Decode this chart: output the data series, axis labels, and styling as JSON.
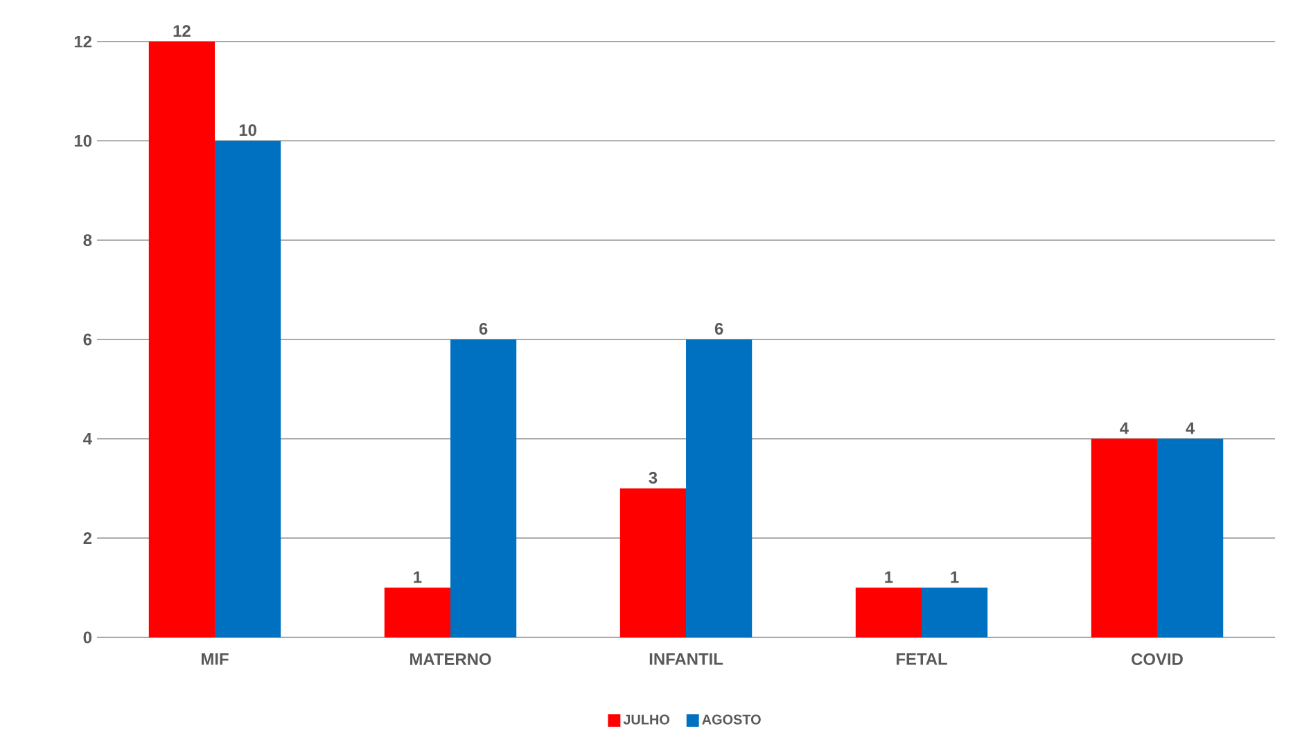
{
  "chart_data": {
    "type": "bar",
    "categories": [
      "MIF",
      "MATERNO",
      "INFANTIL",
      "FETAL",
      "COVID"
    ],
    "series": [
      {
        "name": "JULHO",
        "color": "#ff0000",
        "values": [
          12,
          1,
          3,
          1,
          4
        ]
      },
      {
        "name": "AGOSTO",
        "color": "#0070c0",
        "values": [
          10,
          6,
          6,
          1,
          4
        ]
      }
    ],
    "ylim": [
      0,
      12
    ],
    "yticks": [
      0,
      2,
      4,
      6,
      8,
      10,
      12
    ],
    "grid": "y",
    "legend": "bottom",
    "data_labels": true
  }
}
